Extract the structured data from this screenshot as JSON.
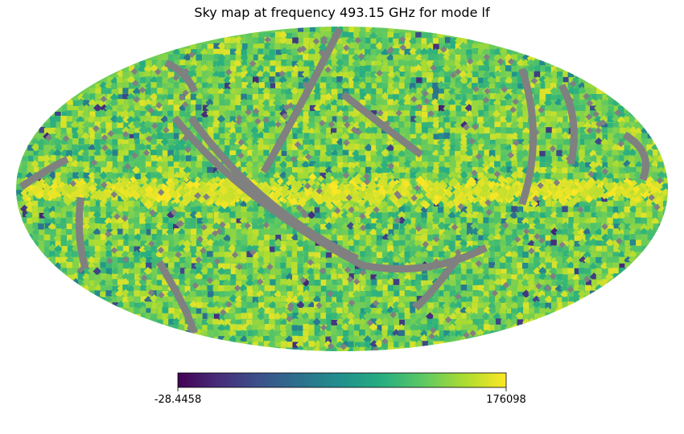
{
  "chart_data": {
    "type": "heatmap",
    "projection": "mollweide",
    "title": "Sky map at frequency 493.15 GHz for mode lf",
    "colormap": "viridis",
    "colorbar": {
      "min": -28.4458,
      "max": 176098,
      "min_label": "-28.4458",
      "max_label": "176098",
      "orientation": "horizontal",
      "placement": "bottom-center"
    },
    "missing_value_color": "#808080",
    "features": {
      "galactic_plane_band": "bright yellow band near the equator, centered slightly right of center",
      "masked_scan_stripes": "gray unobserved diagonal stripes crossing the sphere",
      "background": "mostly green-yellow values with scattered dark blue pixels"
    }
  }
}
